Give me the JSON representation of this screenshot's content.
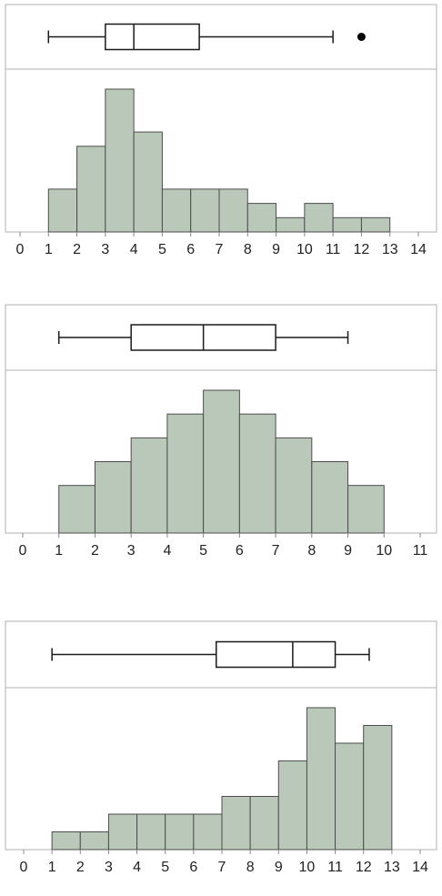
{
  "chart_data": [
    {
      "type": "bar",
      "subtype": "histogram-with-boxplot",
      "bins": [
        [
          1,
          2
        ],
        [
          2,
          3
        ],
        [
          3,
          4
        ],
        [
          4,
          5
        ],
        [
          5,
          6
        ],
        [
          6,
          7
        ],
        [
          7,
          8
        ],
        [
          8,
          9
        ],
        [
          9,
          10
        ],
        [
          10,
          11
        ],
        [
          11,
          12
        ],
        [
          12,
          13
        ]
      ],
      "values": [
        3,
        6,
        10,
        7,
        3,
        3,
        3,
        2,
        1,
        2,
        1,
        1
      ],
      "xlim": [
        0,
        14
      ],
      "xticks": [
        "0",
        "1",
        "2",
        "3",
        "4",
        "5",
        "6",
        "7",
        "8",
        "9",
        "10",
        "11",
        "12",
        "13",
        "14"
      ],
      "boxplot": {
        "whisker_low": 1,
        "q1": 3,
        "median": 4,
        "q3": 6.3,
        "whisker_high": 11,
        "outliers": [
          12
        ]
      }
    },
    {
      "type": "bar",
      "subtype": "histogram-with-boxplot",
      "bins": [
        [
          1,
          2
        ],
        [
          2,
          3
        ],
        [
          3,
          4
        ],
        [
          4,
          5
        ],
        [
          5,
          6
        ],
        [
          6,
          7
        ],
        [
          7,
          8
        ],
        [
          8,
          9
        ],
        [
          9,
          10
        ]
      ],
      "values": [
        2,
        3,
        4,
        5,
        6,
        5,
        4,
        3,
        2
      ],
      "xlim": [
        0,
        11
      ],
      "xticks": [
        "0",
        "1",
        "2",
        "3",
        "4",
        "5",
        "6",
        "7",
        "8",
        "9",
        "10",
        "11"
      ],
      "boxplot": {
        "whisker_low": 1,
        "q1": 3,
        "median": 5,
        "q3": 7,
        "whisker_high": 9,
        "outliers": []
      }
    },
    {
      "type": "bar",
      "subtype": "histogram-with-boxplot",
      "bins": [
        [
          1,
          2
        ],
        [
          2,
          3
        ],
        [
          3,
          4
        ],
        [
          4,
          5
        ],
        [
          5,
          6
        ],
        [
          6,
          7
        ],
        [
          7,
          8
        ],
        [
          8,
          9
        ],
        [
          9,
          10
        ],
        [
          10,
          11
        ],
        [
          11,
          12
        ],
        [
          12,
          13
        ]
      ],
      "values": [
        1,
        1,
        2,
        2,
        2,
        2,
        3,
        3,
        5,
        8,
        6,
        7
      ],
      "xlim": [
        0,
        14
      ],
      "xticks": [
        "0",
        "1",
        "2",
        "3",
        "4",
        "5",
        "6",
        "7",
        "8",
        "9",
        "10",
        "11",
        "12",
        "13",
        "14"
      ],
      "boxplot": {
        "whisker_low": 1,
        "q1": 6.8,
        "median": 9.5,
        "q3": 11,
        "whisker_high": 12.2,
        "outliers": []
      }
    }
  ]
}
